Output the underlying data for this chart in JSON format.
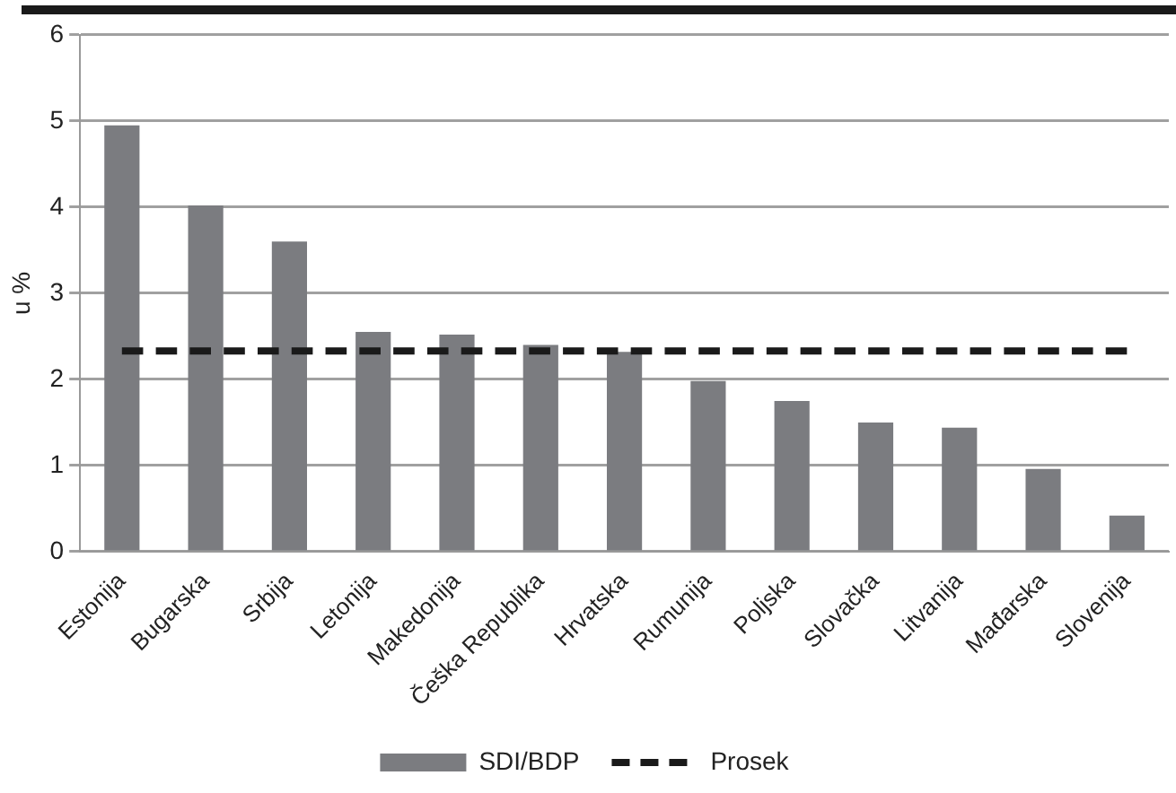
{
  "chart_data": {
    "type": "bar",
    "ylabel": "u %",
    "categories": [
      "Estonija",
      "Bugarska",
      "Srbija",
      "Letonija",
      "Makedonija",
      "Češka Republika",
      "Hrvatska",
      "Rumunija",
      "Poljska",
      "Slovačka",
      "Litvanija",
      "Mađarska",
      "Slovenija"
    ],
    "series": [
      {
        "name": "SDI/BDP",
        "color": "#7b7c80",
        "values": [
          4.95,
          4.02,
          3.6,
          2.55,
          2.52,
          2.4,
          2.32,
          1.98,
          1.75,
          1.5,
          1.44,
          0.96,
          0.42
        ]
      },
      {
        "name": "Prosek",
        "type": "line",
        "color": "#1a1a1a",
        "line_style": "dashed",
        "marker": "none",
        "values": [
          2.33,
          2.33,
          2.33,
          2.33,
          2.33,
          2.33,
          2.33,
          2.33,
          2.33,
          2.33,
          2.33,
          2.33,
          2.33
        ]
      }
    ],
    "ylim": [
      0,
      6
    ],
    "yticks": [
      0,
      1,
      2,
      3,
      4,
      5,
      6
    ],
    "grid": "y",
    "legend": "bottom"
  }
}
